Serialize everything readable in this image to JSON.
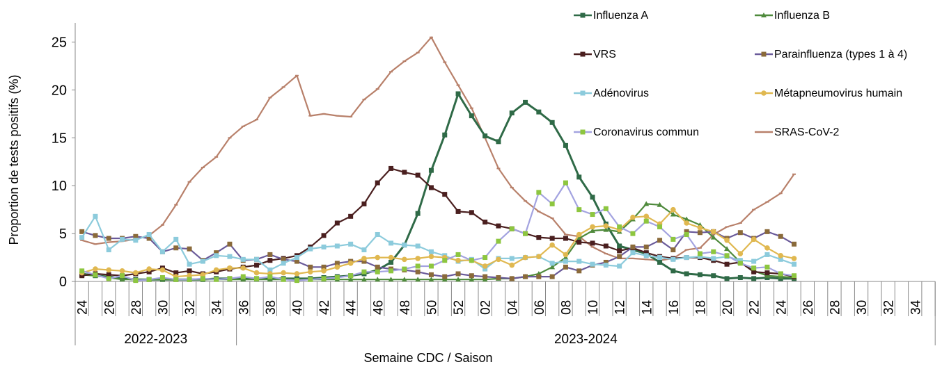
{
  "chart_data": {
    "type": "line",
    "y_label": "Proportion de tests positifs (%)",
    "x_label": "Semaine CDC / Saison",
    "seasons": [
      "2022-2023",
      "2023-2024"
    ],
    "categories": [
      "24",
      null,
      "26",
      null,
      "28",
      null,
      "30",
      null,
      "32",
      null,
      "34",
      null,
      "36",
      null,
      "38",
      null,
      "40",
      null,
      "42",
      null,
      "44",
      null,
      "46",
      null,
      "48",
      null,
      "50",
      null,
      "52",
      null,
      "02",
      null,
      "04",
      null,
      "06",
      null,
      "08",
      null,
      "10",
      null,
      "12",
      null,
      "14",
      null,
      "16",
      null,
      "18",
      null,
      "20",
      null,
      "22",
      null,
      "24",
      null,
      "26",
      null,
      "28",
      null,
      "30",
      null,
      "32",
      null,
      "34",
      null
    ],
    "ylim": [
      0,
      27
    ],
    "yticks": [
      0,
      5,
      10,
      15,
      20,
      25
    ],
    "grid": false,
    "series": [
      {
        "name": "SRAS-CoV-2",
        "color": "#b8806a",
        "marker": "dash",
        "marker_color": "#b8806a",
        "values": [
          4.3,
          3.9,
          4.1,
          4.2,
          4.4,
          4.8,
          5.9,
          8.0,
          10.4,
          11.9,
          13.0,
          15.0,
          16.2,
          16.9,
          19.2,
          20.3,
          21.5,
          17.3,
          17.5,
          17.3,
          17.2,
          19.0,
          20.1,
          21.9,
          23.0,
          23.9,
          25.5,
          22.9,
          20.5,
          18.1,
          15.0,
          11.8,
          9.8,
          8.4,
          7.3,
          6.6,
          4.9,
          4.7,
          3.6,
          2.9,
          2.4,
          2.4,
          2.3,
          2.2,
          2.4,
          3.3,
          3.5,
          4.9,
          5.7,
          6.1,
          7.5,
          8.3,
          9.2,
          11.2,
          null,
          null,
          null,
          null,
          null,
          null,
          null,
          null,
          null,
          null
        ]
      },
      {
        "name": "Influenza A",
        "color": "#2f6a47",
        "marker": "square",
        "marker_color": "#2f6a47",
        "values": [
          0.8,
          0.6,
          0.5,
          0.3,
          0.2,
          0.2,
          0.2,
          0.2,
          0.2,
          0.2,
          0.3,
          0.3,
          0.3,
          0.3,
          0.3,
          0.3,
          0.3,
          0.3,
          0.4,
          0.5,
          0.6,
          0.8,
          1.2,
          2.0,
          3.8,
          7.1,
          11.6,
          15.3,
          19.6,
          17.3,
          15.2,
          14.6,
          17.6,
          18.7,
          17.7,
          16.6,
          14.2,
          10.9,
          8.8,
          6.0,
          3.7,
          3.3,
          2.9,
          2.0,
          1.1,
          0.8,
          0.7,
          0.6,
          0.3,
          0.4,
          0.3,
          0.4,
          0.3,
          0.3,
          null,
          null,
          null,
          null,
          null,
          null,
          null,
          null,
          null,
          null
        ]
      },
      {
        "name": "Influenza B",
        "color": "#4f8a3c",
        "marker": "triangle",
        "marker_color": "#4f8a3c",
        "values": [
          0.7,
          0.6,
          0.4,
          0.2,
          0.2,
          0.2,
          0.2,
          0.2,
          0.2,
          0.2,
          0.2,
          0.2,
          0.2,
          0.2,
          0.2,
          0.2,
          0.2,
          0.2,
          0.2,
          0.2,
          0.2,
          0.2,
          0.2,
          0.2,
          0.2,
          0.2,
          0.2,
          0.2,
          0.2,
          0.2,
          0.2,
          0.3,
          0.3,
          0.5,
          0.8,
          1.5,
          2.5,
          4.5,
          5.3,
          5.4,
          5.2,
          6.5,
          8.1,
          8.0,
          7.0,
          6.5,
          5.9,
          4.6,
          3.4,
          2.0,
          1.1,
          0.6,
          0.5,
          0.4,
          null,
          null,
          null,
          null,
          null,
          null,
          null,
          null,
          null,
          null
        ]
      },
      {
        "name": "VRS",
        "color": "#4a1f1f",
        "marker": "square",
        "marker_color": "#4a1f1f",
        "values": [
          0.6,
          0.8,
          0.7,
          0.6,
          0.8,
          1.0,
          1.4,
          0.9,
          1.1,
          0.8,
          1.0,
          1.3,
          1.5,
          1.7,
          2.2,
          2.4,
          2.7,
          3.6,
          4.8,
          6.1,
          6.8,
          8.1,
          10.3,
          11.8,
          11.4,
          11.1,
          9.8,
          9.1,
          7.3,
          7.2,
          6.2,
          5.8,
          5.5,
          5.0,
          4.6,
          4.5,
          4.5,
          4.1,
          4.0,
          3.7,
          3.2,
          3.5,
          3.0,
          2.6,
          2.4,
          2.5,
          2.5,
          2.2,
          1.8,
          2.0,
          1.0,
          0.9,
          0.8,
          0.5,
          null,
          null,
          null,
          null,
          null,
          null,
          null,
          null,
          null,
          null
        ]
      },
      {
        "name": "Parainfluenza (types 1 à 4)",
        "color": "#6a5a9a",
        "marker": "square",
        "marker_color": "#8a6a3a",
        "values": [
          5.2,
          4.8,
          4.5,
          4.5,
          4.7,
          4.5,
          3.1,
          3.5,
          3.4,
          2.2,
          3.0,
          3.9,
          2.2,
          2.3,
          2.8,
          2.3,
          2.1,
          1.5,
          1.5,
          1.9,
          2.1,
          2.1,
          1.5,
          1.3,
          1.2,
          1.0,
          0.7,
          0.5,
          0.8,
          0.6,
          0.5,
          0.4,
          0.3,
          0.5,
          0.5,
          0.5,
          1.5,
          1.1,
          1.7,
          2.0,
          2.6,
          3.6,
          3.6,
          4.3,
          3.3,
          5.2,
          5.1,
          5.2,
          4.5,
          5.1,
          4.5,
          5.2,
          4.7,
          3.9,
          null,
          null,
          null,
          null,
          null,
          null,
          null,
          null,
          null,
          null
        ]
      },
      {
        "name": "Adénovirus",
        "color": "#8ccbdc",
        "marker": "square",
        "marker_color": "#8ccbdc",
        "values": [
          4.6,
          6.8,
          3.3,
          4.4,
          4.3,
          4.9,
          3.1,
          4.4,
          1.8,
          2.1,
          2.7,
          2.6,
          2.3,
          2.3,
          1.2,
          1.9,
          2.5,
          3.4,
          3.6,
          3.7,
          3.9,
          3.3,
          4.9,
          4.0,
          3.8,
          3.7,
          3.1,
          2.7,
          2.1,
          2.3,
          1.3,
          2.4,
          2.4,
          2.5,
          2.6,
          1.9,
          2.1,
          2.1,
          1.8,
          1.7,
          1.6,
          3.0,
          2.7,
          2.5,
          2.3,
          2.5,
          2.6,
          2.4,
          2.6,
          2.2,
          2.1,
          2.8,
          2.3,
          1.8,
          null,
          null,
          null,
          null,
          null,
          null,
          null,
          null,
          null,
          null
        ]
      },
      {
        "name": "Métapneumovirus humain",
        "color": "#e0b850",
        "marker": "circle",
        "marker_color": "#e0b850",
        "values": [
          0.9,
          1.3,
          1.2,
          1.1,
          0.9,
          1.3,
          1.2,
          0.5,
          0.6,
          0.7,
          1.2,
          1.4,
          1.4,
          0.9,
          0.8,
          0.9,
          0.8,
          1.0,
          1.1,
          1.5,
          1.9,
          2.4,
          2.5,
          2.5,
          2.3,
          2.4,
          2.6,
          2.5,
          2.2,
          2.2,
          1.6,
          2.3,
          1.7,
          2.5,
          2.6,
          3.8,
          2.8,
          4.9,
          5.7,
          5.8,
          5.4,
          6.7,
          6.8,
          6.0,
          7.5,
          6.1,
          5.6,
          5.2,
          4.3,
          2.9,
          4.4,
          3.5,
          2.7,
          2.4,
          null,
          null,
          null,
          null,
          null,
          null,
          null,
          null,
          null,
          null
        ]
      },
      {
        "name": "Coronavirus commun",
        "color": "#a3a3e0",
        "marker": "square",
        "marker_color": "#8dc63f",
        "values": [
          1.1,
          0.7,
          0.3,
          0.6,
          0.1,
          0.2,
          0.4,
          0.2,
          0.2,
          0.3,
          0.2,
          0.3,
          0.5,
          0.3,
          0.5,
          0.2,
          0.1,
          0.2,
          0.3,
          0.4,
          0.6,
          1.0,
          1.0,
          1.1,
          1.3,
          1.6,
          1.6,
          2.2,
          2.8,
          2.2,
          2.5,
          4.2,
          5.5,
          5.0,
          9.3,
          8.1,
          10.3,
          7.5,
          7.0,
          7.6,
          5.7,
          5.0,
          6.3,
          5.7,
          4.4,
          4.9,
          2.9,
          3.1,
          2.7,
          1.9,
          1.4,
          1.5,
          0.8,
          0.6,
          null,
          null,
          null,
          null,
          null,
          null,
          null,
          null,
          null,
          null
        ]
      }
    ],
    "legend_order": [
      1,
      2,
      3,
      4,
      5,
      6,
      7,
      0
    ]
  }
}
